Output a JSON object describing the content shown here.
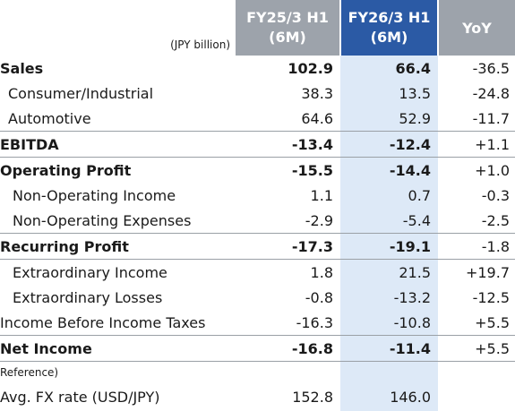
{
  "header": {
    "unit": "(JPY billion)",
    "prev_line1": "FY25/3 H1",
    "prev_line2": "(6M)",
    "cur_line1": "FY26/3 H1",
    "cur_line2": "(6M)",
    "yoy": "YoY"
  },
  "colors": {
    "current_period_header": "#2b5aa5",
    "prior_header": "#9da3ab",
    "current_column_fill": "#dde9f7"
  },
  "rows": [
    {
      "label": "Sales",
      "prev": "102.9",
      "cur": "66.4",
      "yoy": "-36.5"
    },
    {
      "label": "Consumer/Industrial",
      "prev": "38.3",
      "cur": "13.5",
      "yoy": "-24.8"
    },
    {
      "label": "Automotive",
      "prev": "64.6",
      "cur": "52.9",
      "yoy": "-11.7"
    },
    {
      "label": "EBITDA",
      "prev": "-13.4",
      "cur": "-12.4",
      "yoy": "+1.1"
    },
    {
      "label": "Operating Profit",
      "prev": "-15.5",
      "cur": "-14.4",
      "yoy": "+1.0"
    },
    {
      "label": "Non-Operating Income",
      "prev": "1.1",
      "cur": "0.7",
      "yoy": "-0.3"
    },
    {
      "label": "Non-Operating Expenses",
      "prev": "-2.9",
      "cur": "-5.4",
      "yoy": "-2.5"
    },
    {
      "label": "Recurring Profit",
      "prev": "-17.3",
      "cur": "-19.1",
      "yoy": "-1.8"
    },
    {
      "label": "Extraordinary Income",
      "prev": "1.8",
      "cur": "21.5",
      "yoy": "+19.7"
    },
    {
      "label": "Extraordinary Losses",
      "prev": "-0.8",
      "cur": "-13.2",
      "yoy": "-12.5"
    },
    {
      "label": "Income Before Income Taxes",
      "prev": "-16.3",
      "cur": "-10.8",
      "yoy": "+5.5"
    },
    {
      "label": "Net Income",
      "prev": "-16.8",
      "cur": "-11.4",
      "yoy": "+5.5"
    }
  ],
  "reference": {
    "note": "Reference)",
    "fx_label": "Avg. FX rate (USD/JPY)",
    "fx_prev": "152.8",
    "fx_cur": "146.0"
  }
}
